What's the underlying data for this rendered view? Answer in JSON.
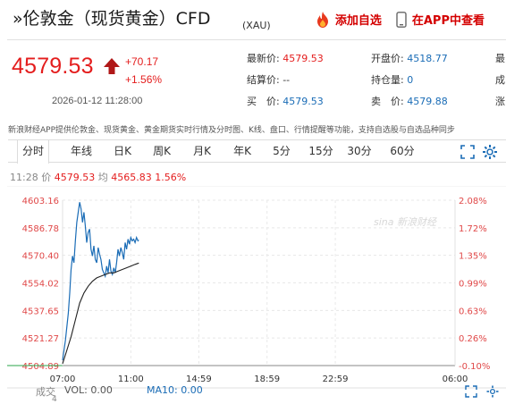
{
  "header": {
    "title": "»伦敦金（现货黄金）CFD",
    "subtitle": "(XAU)",
    "add_watchlist": "添加自选",
    "open_app": "在APP中查看"
  },
  "quote": {
    "price": "4579.53",
    "change": "+70.17",
    "change_pct": "+1.56%",
    "timestamp": "2026-01-12 11:28:00",
    "fields": [
      {
        "label": "最新价:",
        "value": "4579.53",
        "color": "red"
      },
      {
        "label": "开盘价:",
        "value": "4518.77",
        "color": "blue"
      },
      {
        "label": "最",
        "value": "",
        "color": "gray"
      },
      {
        "label": "结算价:",
        "value": "--",
        "color": "gray"
      },
      {
        "label": "持仓量:",
        "value": "0",
        "color": "blue"
      },
      {
        "label": "成",
        "value": "",
        "color": "gray"
      },
      {
        "label": "买　价:",
        "value": "4579.53",
        "color": "blue"
      },
      {
        "label": "卖　价:",
        "value": "4579.88",
        "color": "blue"
      },
      {
        "label": "涨",
        "value": "",
        "color": "gray"
      }
    ]
  },
  "notice": "新浪财经APP提供伦敦金、现货黄金、黄金期货实时行情及分时图、K线、盘口、行情提醒等功能，支持自选股与自选品种同步",
  "tabs": [
    "分时",
    "年线",
    "日K",
    "周K",
    "月K",
    "年K",
    "5分",
    "15分",
    "30分",
    "60分"
  ],
  "chart_head": {
    "time": "11:28",
    "price_label": "价",
    "price": "4579.53",
    "avg_label": "均",
    "avg": "4565.83",
    "pct": "1.56%"
  },
  "watermark": "sina 新浪财经",
  "volume": {
    "label": "成交",
    "sub": "4",
    "vol": "VOL: 0.00",
    "ma10": "MA10: 0.00"
  },
  "colors": {
    "up": "#e41d1d",
    "price_line": "#1a6cb6",
    "avg_line": "#222222"
  },
  "chart_data": {
    "type": "line",
    "x_ticks": [
      "07:00",
      "11:00",
      "14:59",
      "18:59",
      "22:59",
      "06:00"
    ],
    "y_ticks_left": [
      "4603.16",
      "4586.78",
      "4570.40",
      "4554.02",
      "4537.65",
      "4521.27",
      "4504.89"
    ],
    "y_ticks_right": [
      "2.08%",
      "1.72%",
      "1.35%",
      "0.99%",
      "0.63%",
      "0.26%",
      "-0.10%"
    ],
    "ylim": [
      4504.89,
      4603.16
    ],
    "series": [
      {
        "type": "price",
        "x": [
          "07:00",
          "07:05",
          "07:10",
          "07:15",
          "07:20",
          "07:25",
          "07:30",
          "07:35",
          "07:40",
          "07:45",
          "07:50",
          "07:55",
          "08:00",
          "08:05",
          "08:10",
          "08:15",
          "08:20",
          "08:25",
          "08:30",
          "08:35",
          "08:40",
          "08:45",
          "08:50",
          "08:55",
          "09:00",
          "09:05",
          "09:10",
          "09:15",
          "09:20",
          "09:25",
          "09:30",
          "09:35",
          "09:40",
          "09:45",
          "09:50",
          "09:55",
          "10:00",
          "10:05",
          "10:10",
          "10:15",
          "10:20",
          "10:25",
          "10:30",
          "10:35",
          "10:40",
          "10:45",
          "10:50",
          "10:55",
          "11:00",
          "11:05",
          "11:10",
          "11:15",
          "11:20",
          "11:25",
          "11:28"
        ],
        "values": [
          4508,
          4514,
          4520,
          4528,
          4536,
          4548,
          4562,
          4570,
          4566,
          4579,
          4590,
          4596,
          4602,
          4598,
          4590,
          4596,
          4588,
          4578,
          4584,
          4586,
          4574,
          4570,
          4576,
          4568,
          4566,
          4575,
          4571,
          4568,
          4562,
          4560,
          4558,
          4564,
          4560,
          4568,
          4561,
          4559,
          4563,
          4560,
          4566,
          4574,
          4570,
          4575,
          4572,
          4568,
          4578,
          4574,
          4580,
          4577,
          4581,
          4579,
          4580,
          4578,
          4581,
          4579,
          4579.53
        ]
      },
      {
        "type": "average",
        "x": [
          "07:00",
          "07:15",
          "07:30",
          "07:45",
          "08:00",
          "08:15",
          "08:30",
          "08:45",
          "09:00",
          "09:15",
          "09:30",
          "09:45",
          "10:00",
          "10:15",
          "10:30",
          "10:45",
          "11:00",
          "11:15",
          "11:28"
        ],
        "values": [
          4506,
          4514,
          4522,
          4532,
          4542,
          4548,
          4552,
          4555,
          4557,
          4558,
          4559,
          4560,
          4560,
          4561,
          4562,
          4563,
          4564,
          4565,
          4565.83
        ]
      }
    ]
  }
}
